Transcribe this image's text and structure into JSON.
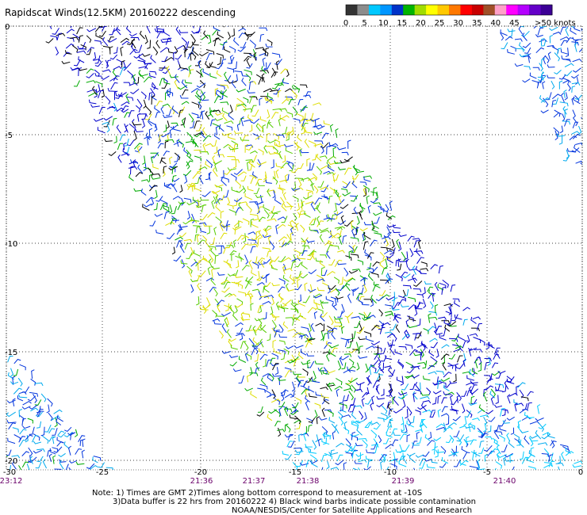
{
  "title": "Rapidscat Winds(12.5KM) 20160222 descending",
  "legend": {
    "labels": [
      "0",
      "5",
      "10",
      "15",
      "20",
      "25",
      "30",
      "35",
      "40",
      "45",
      ">50 knots"
    ],
    "colors": [
      "#333333",
      "#8c8c8c",
      "#00c8ff",
      "#0096ff",
      "#0032c8",
      "#00b400",
      "#a0dc00",
      "#ffff00",
      "#ffc800",
      "#ff7800",
      "#ff0000",
      "#c80000",
      "#a05028",
      "#ffa0c8",
      "#ff00ff",
      "#b400ff",
      "#6400c8",
      "#3c0096"
    ]
  },
  "axes": {
    "lon_labels": [
      "-30",
      "-25",
      "-20",
      "-15",
      "-10",
      "-5",
      "0"
    ],
    "lat_labels": [
      "0",
      "-5",
      "-10",
      "-15",
      "-20"
    ],
    "time_labels": [
      "23:12",
      "21:36",
      "21:37",
      "21:38",
      "21:39",
      "21:40"
    ]
  },
  "notes": {
    "line1": "Note: 1) Times are GMT 2)Times along bottom correspond to measurement at -10S",
    "line2": "3)Data buffer is 22 hrs from 20160222 4) Black wind barbs indicate possible contamination",
    "line3": "NOAA/NESDIS/Center for Satellite Applications and Research"
  },
  "map_style": {
    "grid": "dotted",
    "barb_colors": [
      "#0000cc",
      "#0033dd",
      "#00aaee",
      "#00ccff",
      "#00aa00",
      "#55cc00",
      "#dddd00",
      "#000000"
    ]
  }
}
